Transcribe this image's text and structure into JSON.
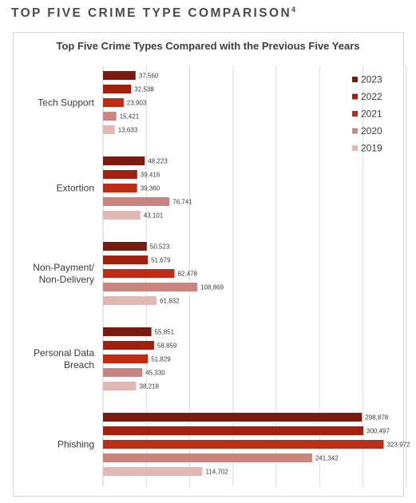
{
  "page_heading": "TOP FIVE CRIME TYPE COMPARISON",
  "page_heading_sup": "4",
  "chart_data": {
    "type": "bar",
    "orientation": "horizontal",
    "title": "Top Five Crime Types Compared with the Previous Five Years",
    "categories": [
      "Tech Support",
      "Extortion",
      "Non-Payment/ Non-Delivery",
      "Personal Data Breach",
      "Phishing"
    ],
    "category_lines": [
      [
        "Tech Support"
      ],
      [
        "Extortion"
      ],
      [
        "Non-Payment/",
        "Non-Delivery"
      ],
      [
        "Personal Data",
        "Breach"
      ],
      [
        "Phishing"
      ]
    ],
    "series": [
      {
        "name": "2023",
        "color": "#7a1a10",
        "values": [
          37560,
          48223,
          50523,
          55851,
          298878
        ],
        "labels": [
          "37,560",
          "48,223",
          "50,523",
          "55,851",
          "298,878"
        ]
      },
      {
        "name": "2022",
        "color": "#a3200f",
        "values": [
          32538,
          39416,
          51679,
          58859,
          300497
        ],
        "labels": [
          "32,538",
          "39,416",
          "51,679",
          "58,859",
          "300,497"
        ]
      },
      {
        "name": "2021",
        "color": "#bf2c14",
        "values": [
          23903,
          39360,
          82478,
          51829,
          323972
        ],
        "labels": [
          "23,903",
          "39,360",
          "82,478",
          "51,829",
          "323,972"
        ]
      },
      {
        "name": "2020",
        "color": "#c98681",
        "values": [
          15421,
          76741,
          108869,
          45330,
          241342
        ],
        "labels": [
          "15,421",
          "76,741",
          "108,869",
          "45,330",
          "241,342"
        ]
      },
      {
        "name": "2019",
        "color": "#e3b7b4",
        "values": [
          13633,
          43101,
          61832,
          38218,
          114702
        ],
        "labels": [
          "13,633",
          "43,101",
          "61,832",
          "38,218",
          "114,702"
        ]
      }
    ],
    "xlim": [
      0,
      350000
    ],
    "grid": true,
    "legend_position": "top-right"
  }
}
